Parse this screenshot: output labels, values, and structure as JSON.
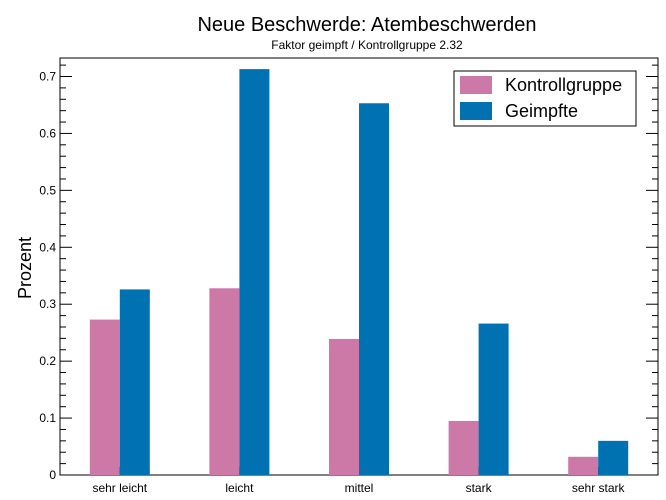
{
  "chart_data": {
    "type": "bar",
    "title": "Neue Beschwerde: Atembeschwerden",
    "subtitle": "Faktor geimpft / Kontrollgruppe 2.32",
    "xlabel": "",
    "ylabel": "Prozent",
    "ylim": [
      0,
      0.72
    ],
    "yticks": [
      "0",
      "0.1",
      "0.2",
      "0.3",
      "0.4",
      "0.5",
      "0.6",
      "0.7"
    ],
    "categories": [
      "sehr leicht",
      "leicht",
      "mittel",
      "stark",
      "sehr stark"
    ],
    "series": [
      {
        "name": "Kontrollgruppe",
        "color": "#cc79a7",
        "values": [
          0.273,
          0.328,
          0.239,
          0.095,
          0.032
        ]
      },
      {
        "name": "Geimpfte",
        "color": "#0072b2",
        "values": [
          0.326,
          0.713,
          0.653,
          0.266,
          0.06
        ]
      }
    ],
    "legend_position": "top-right",
    "grid": false
  }
}
